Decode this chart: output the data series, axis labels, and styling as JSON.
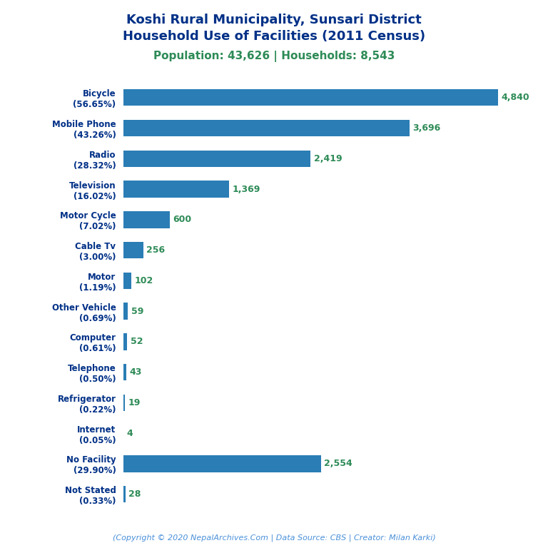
{
  "title_line1": "Koshi Rural Municipality, Sunsari District",
  "title_line2": "Household Use of Facilities (2011 Census)",
  "subtitle": "Population: 43,626 | Households: 8,543",
  "footer": "(Copyright © 2020 NepalArchives.Com | Data Source: CBS | Creator: Milan Karki)",
  "categories": [
    "Not Stated\n(0.33%)",
    "No Facility\n(29.90%)",
    "Internet\n(0.05%)",
    "Refrigerator\n(0.22%)",
    "Telephone\n(0.50%)",
    "Computer\n(0.61%)",
    "Other Vehicle\n(0.69%)",
    "Motor\n(1.19%)",
    "Cable Tv\n(3.00%)",
    "Motor Cycle\n(7.02%)",
    "Television\n(16.02%)",
    "Radio\n(28.32%)",
    "Mobile Phone\n(43.26%)",
    "Bicycle\n(56.65%)"
  ],
  "values": [
    28,
    2554,
    4,
    19,
    43,
    52,
    59,
    102,
    256,
    600,
    1369,
    2419,
    3696,
    4840
  ],
  "bar_color": "#2A7DB5",
  "value_color": "#2E8B57",
  "title_color": "#003087",
  "subtitle_color": "#2E8B57",
  "footer_color": "#4A90D9",
  "xlim": [
    0,
    5200
  ],
  "figsize": [
    7.68,
    7.68
  ],
  "dpi": 100
}
